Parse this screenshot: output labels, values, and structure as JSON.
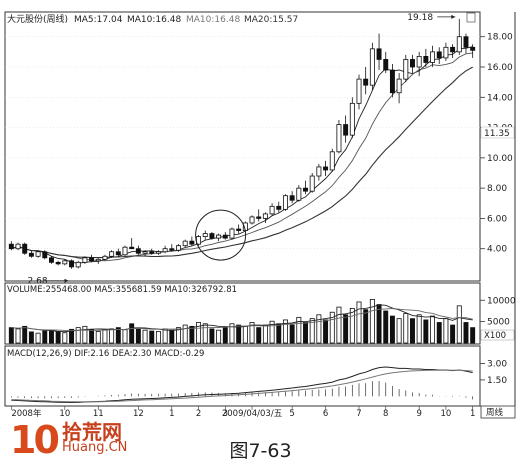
{
  "chart_data": [
    {
      "type": "candlestick",
      "title": "大元股份(周线)",
      "ma_labels": [
        {
          "text": "MA5:17.04",
          "color": "#222222"
        },
        {
          "text": "MA10:16.48",
          "color": "#222222"
        },
        {
          "text": "MA10:16.48",
          "color": "#777777"
        },
        {
          "text": "MA20:15.57",
          "color": "#333333"
        }
      ],
      "y_ticks": [
        "18.00",
        "16.00",
        "14.00",
        "12.00",
        "10.00",
        "8.00",
        "6.00",
        "4.00"
      ],
      "ylim": [
        2,
        19.5
      ],
      "current_price_label": "11.35",
      "annotations": [
        {
          "label": "2.68",
          "value": 2.68,
          "index": 9
        },
        {
          "label": "19.18",
          "value": 19.18,
          "index": 67
        }
      ],
      "highlight_circle_index": 31,
      "candles": [
        [
          4.3,
          4.5,
          3.9,
          4.0
        ],
        [
          4.0,
          4.4,
          3.9,
          4.3
        ],
        [
          4.3,
          4.4,
          3.6,
          3.7
        ],
        [
          3.7,
          3.9,
          3.4,
          3.5
        ],
        [
          3.5,
          3.9,
          3.4,
          3.8
        ],
        [
          3.8,
          3.9,
          3.3,
          3.4
        ],
        [
          3.4,
          3.5,
          3.0,
          3.1
        ],
        [
          3.1,
          3.2,
          2.9,
          3.0
        ],
        [
          3.0,
          3.3,
          2.9,
          3.2
        ],
        [
          3.2,
          3.3,
          2.68,
          2.8
        ],
        [
          2.8,
          3.2,
          2.7,
          3.1
        ],
        [
          3.1,
          3.5,
          3.0,
          3.4
        ],
        [
          3.4,
          3.6,
          3.1,
          3.2
        ],
        [
          3.2,
          3.4,
          3.0,
          3.3
        ],
        [
          3.3,
          3.6,
          3.2,
          3.5
        ],
        [
          3.5,
          3.9,
          3.4,
          3.8
        ],
        [
          3.8,
          4.0,
          3.5,
          3.6
        ],
        [
          3.6,
          4.2,
          3.5,
          4.1
        ],
        [
          4.1,
          4.7,
          4.0,
          4.0
        ],
        [
          4.0,
          4.2,
          3.6,
          3.7
        ],
        [
          3.7,
          3.9,
          3.5,
          3.8
        ],
        [
          3.8,
          4.0,
          3.6,
          3.7
        ],
        [
          3.7,
          3.9,
          3.6,
          3.8
        ],
        [
          3.8,
          4.2,
          3.7,
          4.0
        ],
        [
          4.0,
          4.3,
          3.8,
          3.9
        ],
        [
          3.9,
          4.3,
          3.8,
          4.2
        ],
        [
          4.2,
          4.6,
          4.1,
          4.5
        ],
        [
          4.5,
          4.8,
          4.2,
          4.3
        ],
        [
          4.3,
          4.9,
          4.2,
          4.8
        ],
        [
          4.8,
          5.2,
          4.6,
          5.0
        ],
        [
          5.0,
          5.1,
          4.6,
          4.7
        ],
        [
          4.7,
          5.0,
          4.5,
          4.9
        ],
        [
          4.9,
          5.1,
          4.6,
          4.7
        ],
        [
          4.7,
          5.4,
          4.6,
          5.3
        ],
        [
          5.3,
          5.6,
          5.0,
          5.2
        ],
        [
          5.2,
          5.8,
          5.1,
          5.7
        ],
        [
          5.7,
          6.2,
          5.6,
          6.1
        ],
        [
          6.1,
          6.6,
          5.8,
          6.0
        ],
        [
          6.0,
          6.4,
          5.7,
          6.3
        ],
        [
          6.3,
          7.0,
          6.2,
          6.8
        ],
        [
          6.8,
          7.1,
          6.4,
          6.6
        ],
        [
          6.6,
          7.6,
          6.5,
          7.5
        ],
        [
          7.5,
          7.8,
          7.0,
          7.2
        ],
        [
          7.2,
          8.2,
          7.1,
          8.0
        ],
        [
          8.0,
          8.5,
          7.6,
          7.8
        ],
        [
          7.8,
          9.0,
          7.7,
          8.8
        ],
        [
          8.8,
          9.6,
          8.5,
          9.4
        ],
        [
          9.4,
          9.8,
          8.8,
          9.2
        ],
        [
          9.2,
          10.6,
          9.1,
          10.4
        ],
        [
          10.4,
          12.5,
          10.3,
          12.2
        ],
        [
          12.2,
          12.8,
          11.0,
          11.5
        ],
        [
          11.5,
          14.0,
          11.3,
          13.6
        ],
        [
          13.6,
          15.5,
          13.2,
          15.2
        ],
        [
          15.2,
          16.0,
          14.2,
          14.8
        ],
        [
          14.8,
          17.6,
          14.5,
          17.2
        ],
        [
          17.2,
          18.2,
          15.8,
          16.5
        ],
        [
          16.5,
          17.0,
          15.6,
          15.8
        ],
        [
          15.8,
          16.2,
          14.0,
          14.3
        ],
        [
          14.3,
          15.6,
          13.6,
          15.2
        ],
        [
          15.2,
          16.8,
          15.0,
          16.5
        ],
        [
          16.5,
          16.8,
          15.6,
          16.0
        ],
        [
          16.0,
          17.0,
          15.4,
          16.7
        ],
        [
          16.7,
          17.2,
          16.0,
          16.3
        ],
        [
          16.3,
          17.4,
          16.0,
          17.0
        ],
        [
          17.0,
          17.3,
          16.2,
          16.6
        ],
        [
          16.6,
          17.6,
          16.4,
          17.3
        ],
        [
          17.3,
          17.5,
          16.6,
          17.0
        ],
        [
          17.0,
          19.18,
          16.8,
          18.0
        ],
        [
          18.0,
          18.2,
          16.9,
          17.3
        ],
        [
          17.3,
          17.5,
          16.6,
          17.1
        ]
      ]
    },
    {
      "type": "bar",
      "title": "VOLUME:255468.00 MA5:355681.59 MA10:326792.81",
      "y_ticks": [
        "10000",
        "5000"
      ],
      "unit_label": "X100",
      "ylim": [
        0,
        11000
      ],
      "values": [
        3600,
        3300,
        3900,
        2600,
        2300,
        2800,
        3000,
        2700,
        2400,
        3200,
        3600,
        3900,
        3100,
        2700,
        3000,
        3300,
        3600,
        3100,
        4500,
        3300,
        3000,
        2800,
        2700,
        3300,
        3000,
        3600,
        4200,
        3900,
        4800,
        4500,
        3300,
        3000,
        3600,
        4500,
        4200,
        3900,
        4800,
        3600,
        4200,
        5100,
        4500,
        5400,
        4200,
        6000,
        4800,
        5700,
        6600,
        5400,
        7200,
        8400,
        6600,
        8100,
        9600,
        7800,
        10200,
        9000,
        7500,
        6300,
        5700,
        6900,
        5700,
        6600,
        5400,
        6300,
        4800,
        5700,
        4200,
        8700,
        4800,
        3600
      ]
    },
    {
      "type": "line",
      "title": "MACD(12,26,9) DIF:2.16 DEA:2.30 MACD:-0.29",
      "y_ticks": [
        "3.00",
        "1.50"
      ],
      "ylim": [
        -0.7,
        3.5
      ],
      "dif": [
        -0.35,
        -0.38,
        -0.42,
        -0.45,
        -0.48,
        -0.5,
        -0.52,
        -0.54,
        -0.55,
        -0.56,
        -0.55,
        -0.52,
        -0.5,
        -0.47,
        -0.44,
        -0.4,
        -0.37,
        -0.32,
        -0.26,
        -0.24,
        -0.22,
        -0.2,
        -0.17,
        -0.13,
        -0.1,
        -0.06,
        -0.01,
        0.04,
        0.09,
        0.14,
        0.17,
        0.19,
        0.21,
        0.25,
        0.29,
        0.34,
        0.4,
        0.45,
        0.5,
        0.56,
        0.62,
        0.7,
        0.76,
        0.84,
        0.9,
        1.0,
        1.1,
        1.18,
        1.3,
        1.5,
        1.62,
        1.82,
        2.05,
        2.2,
        2.45,
        2.62,
        2.68,
        2.62,
        2.55,
        2.55,
        2.5,
        2.5,
        2.45,
        2.45,
        2.4,
        2.4,
        2.35,
        2.4,
        2.3,
        2.16
      ],
      "dea": [
        -0.3,
        -0.32,
        -0.34,
        -0.37,
        -0.39,
        -0.41,
        -0.44,
        -0.46,
        -0.48,
        -0.49,
        -0.5,
        -0.5,
        -0.5,
        -0.49,
        -0.48,
        -0.46,
        -0.44,
        -0.42,
        -0.39,
        -0.36,
        -0.33,
        -0.31,
        -0.28,
        -0.25,
        -0.22,
        -0.19,
        -0.16,
        -0.12,
        -0.08,
        -0.04,
        0.0,
        0.04,
        0.07,
        0.11,
        0.14,
        0.18,
        0.22,
        0.27,
        0.31,
        0.36,
        0.41,
        0.47,
        0.52,
        0.58,
        0.64,
        0.71,
        0.79,
        0.86,
        0.95,
        1.06,
        1.17,
        1.3,
        1.45,
        1.6,
        1.76,
        1.92,
        2.05,
        2.15,
        2.22,
        2.28,
        2.32,
        2.35,
        2.37,
        2.38,
        2.39,
        2.39,
        2.38,
        2.38,
        2.36,
        2.3
      ]
    }
  ],
  "x_axis_labels": [
    {
      "text": "2008年",
      "index": 0
    },
    {
      "text": "10",
      "index": 8
    },
    {
      "text": "11",
      "index": 13
    },
    {
      "text": "12",
      "index": 19
    },
    {
      "text": "1",
      "index": 24
    },
    {
      "text": "2",
      "index": 28
    },
    {
      "text": "3",
      "index": 32
    },
    {
      "text": "2009/04/03/五",
      "index": 36
    },
    {
      "text": "5",
      "index": 42
    },
    {
      "text": "6",
      "index": 47
    },
    {
      "text": "7",
      "index": 52
    },
    {
      "text": "8",
      "index": 56
    },
    {
      "text": "9",
      "index": 61
    },
    {
      "text": "10",
      "index": 65
    },
    {
      "text": "1",
      "index": 69
    }
  ],
  "period_label": "周线",
  "watermark_cn": "拾荒网",
  "watermark_en": "Huang.CN",
  "logo_number": "10",
  "caption": "图7-63",
  "colors": {
    "up": "#ffffff",
    "down": "#111111",
    "ma5": "#222222",
    "ma10": "#555555",
    "ma20": "#333333",
    "axis": "#333333"
  }
}
